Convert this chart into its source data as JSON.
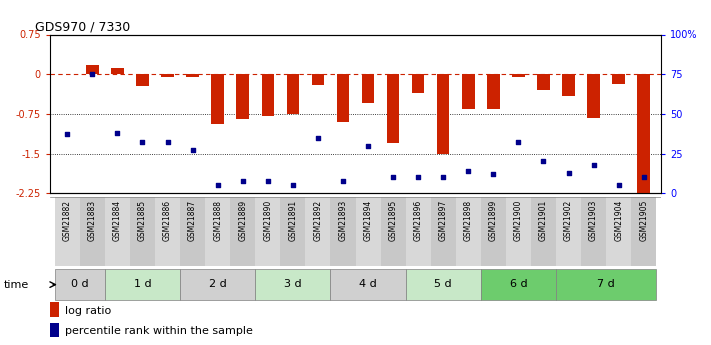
{
  "title": "GDS970 / 7330",
  "samples": [
    "GSM21882",
    "GSM21883",
    "GSM21884",
    "GSM21885",
    "GSM21886",
    "GSM21887",
    "GSM21888",
    "GSM21889",
    "GSM21890",
    "GSM21891",
    "GSM21892",
    "GSM21893",
    "GSM21894",
    "GSM21895",
    "GSM21896",
    "GSM21897",
    "GSM21898",
    "GSM21899",
    "GSM21900",
    "GSM21901",
    "GSM21902",
    "GSM21903",
    "GSM21904",
    "GSM21905"
  ],
  "log_ratio": [
    0.0,
    0.18,
    0.12,
    -0.22,
    -0.05,
    -0.05,
    -0.95,
    -0.85,
    -0.8,
    -0.75,
    -0.2,
    -0.9,
    -0.55,
    -1.3,
    -0.35,
    -1.5,
    -0.65,
    -0.65,
    -0.05,
    -0.3,
    -0.42,
    -0.82,
    -0.18,
    -2.25
  ],
  "percentile": [
    37,
    75,
    38,
    32,
    32,
    27,
    5,
    8,
    8,
    5,
    35,
    8,
    30,
    10,
    10,
    10,
    14,
    12,
    32,
    20,
    13,
    18,
    5,
    10
  ],
  "time_groups": [
    {
      "label": "0 d",
      "start": 0,
      "end": 2
    },
    {
      "label": "1 d",
      "start": 2,
      "end": 5
    },
    {
      "label": "2 d",
      "start": 5,
      "end": 8
    },
    {
      "label": "3 d",
      "start": 8,
      "end": 11
    },
    {
      "label": "4 d",
      "start": 11,
      "end": 14
    },
    {
      "label": "5 d",
      "start": 14,
      "end": 17
    },
    {
      "label": "6 d",
      "start": 17,
      "end": 20
    },
    {
      "label": "7 d",
      "start": 20,
      "end": 24
    }
  ],
  "group_colors": {
    "0 d": "#d0d0d0",
    "1 d": "#c8e8c8",
    "2 d": "#d0d0d0",
    "3 d": "#c8e8c8",
    "4 d": "#d0d0d0",
    "5 d": "#c8e8c8",
    "6 d": "#6dcc6d",
    "7 d": "#6dcc6d"
  },
  "ylim": [
    -2.25,
    0.75
  ],
  "yticks": [
    0.75,
    0,
    -0.75,
    -1.5,
    -2.25
  ],
  "right_yticks": [
    100,
    75,
    50,
    25,
    0
  ],
  "bar_color": "#cc2200",
  "dot_color": "#00008b",
  "bar_width": 0.5
}
